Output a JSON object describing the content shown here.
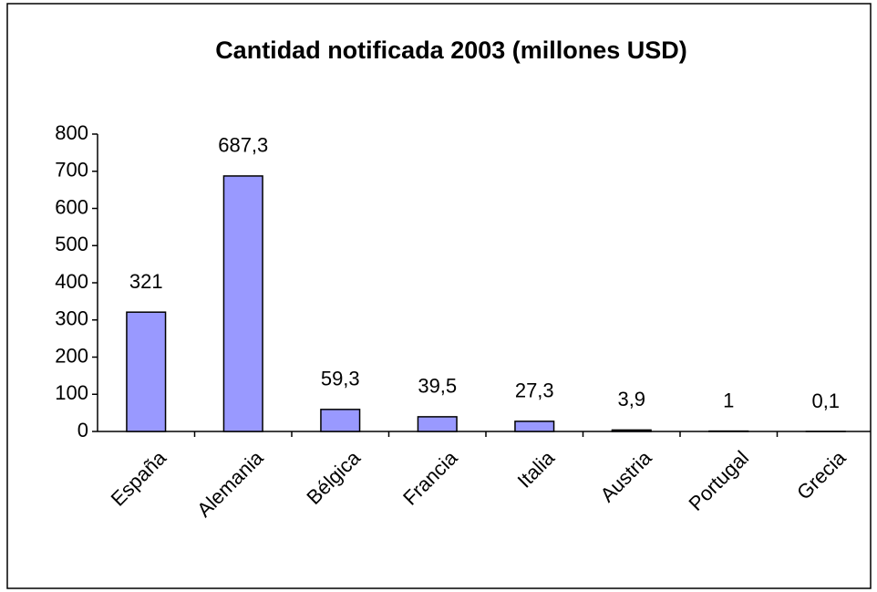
{
  "chart_data": {
    "type": "bar",
    "title": "Cantidad notificada 2003 (millones USD)",
    "categories": [
      "España",
      "Alemania",
      "Bélgica",
      "Francia",
      "Italia",
      "Austria",
      "Portugal",
      "Grecia"
    ],
    "values": [
      321,
      687.3,
      59.3,
      39.5,
      27.3,
      3.9,
      1,
      0.1
    ],
    "value_labels": [
      "321",
      "687,3",
      "59,3",
      "39,5",
      "27,3",
      "3,9",
      "1",
      "0,1"
    ],
    "color": "#9999ff",
    "ylim": [
      0,
      800
    ],
    "yticks": [
      0,
      100,
      200,
      300,
      400,
      500,
      600,
      700,
      800
    ],
    "grid": false
  }
}
